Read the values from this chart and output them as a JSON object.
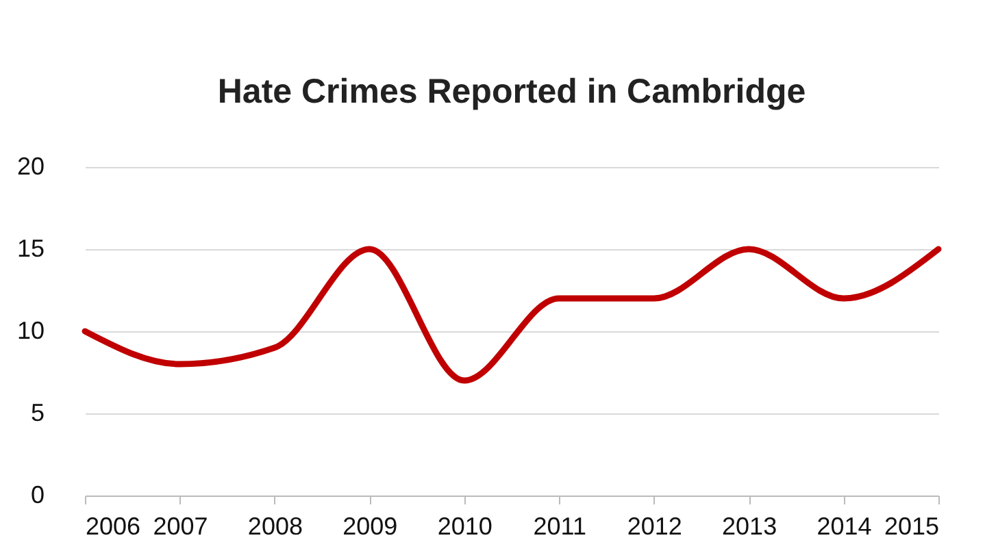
{
  "chart_data": {
    "type": "line",
    "title": "Hate Crimes Reported in Cambridge",
    "x": [
      2006,
      2007,
      2008,
      2009,
      2010,
      2011,
      2012,
      2013,
      2014,
      2015
    ],
    "series": [
      {
        "color": "#c00000",
        "values": [
          10,
          8,
          9,
          15,
          7,
          12,
          12,
          15,
          12,
          15
        ]
      }
    ],
    "xlim": [
      2006,
      2015
    ],
    "xticks": [
      2006,
      2007,
      2008,
      2009,
      2010,
      2011,
      2012,
      2013,
      2014,
      2015
    ],
    "ylim": [
      0,
      20
    ],
    "yticks": [
      0,
      5,
      10,
      15,
      20
    ],
    "grid": "y",
    "legend": false,
    "marker": "none",
    "line_style": "solid"
  }
}
